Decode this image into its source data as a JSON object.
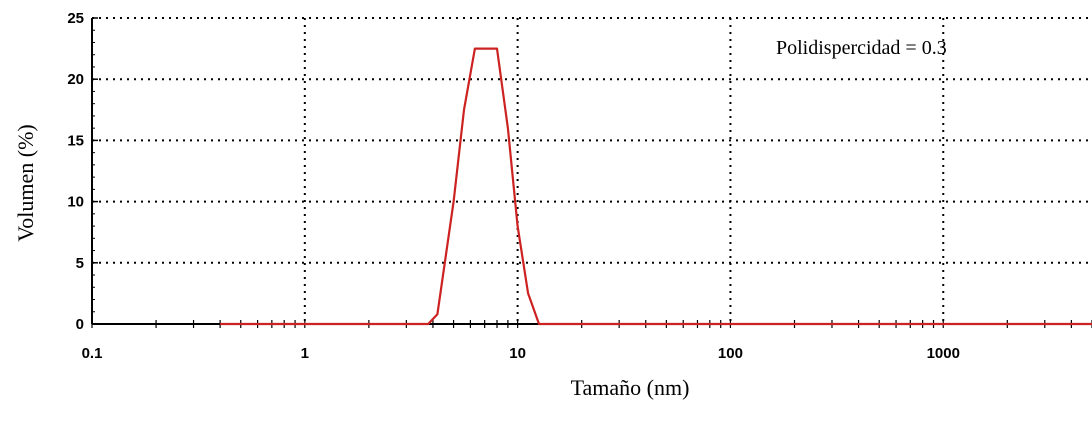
{
  "chart_data": {
    "type": "line",
    "xlabel": "Tamaño (nm)",
    "ylabel": "Volumen (%)",
    "x_scale": "log",
    "xlim": [
      0.1,
      5000
    ],
    "ylim": [
      0,
      25
    ],
    "x_ticks": [
      {
        "value": 0.1,
        "label": "0.1"
      },
      {
        "value": 1,
        "label": "1"
      },
      {
        "value": 10,
        "label": "10"
      },
      {
        "value": 100,
        "label": "100"
      },
      {
        "value": 1000,
        "label": "1000"
      }
    ],
    "y_ticks": [
      {
        "value": 0,
        "label": "0"
      },
      {
        "value": 5,
        "label": "5"
      },
      {
        "value": 10,
        "label": "10"
      },
      {
        "value": 15,
        "label": "15"
      },
      {
        "value": 20,
        "label": "20"
      },
      {
        "value": 25,
        "label": "25"
      }
    ],
    "grid": true,
    "annotation": "Polidispercidad = 0.3",
    "series": [
      {
        "color": "#cc2222",
        "x": [
          0.4,
          3.8,
          4.2,
          5.0,
          5.6,
          6.3,
          7.1,
          8.0,
          9.0,
          10.0,
          11.2,
          12.6,
          14,
          100,
          1000,
          5000
        ],
        "y": [
          0,
          0,
          0.8,
          10,
          17.5,
          22.5,
          22.5,
          22.5,
          16,
          8,
          2.5,
          0,
          0,
          0,
          0,
          0
        ]
      }
    ]
  }
}
